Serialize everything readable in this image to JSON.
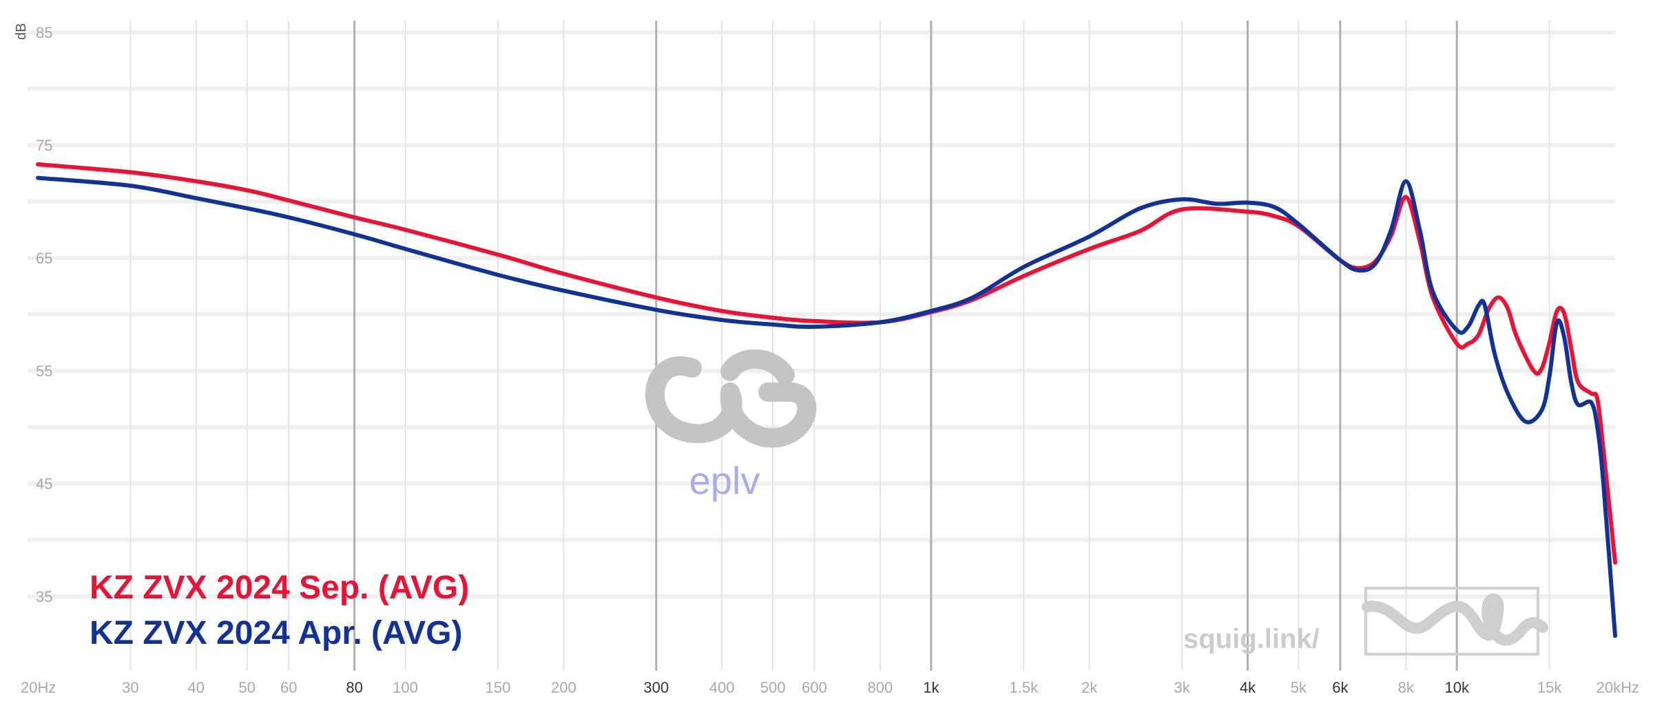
{
  "chart_data": {
    "type": "line",
    "ylabel": "dB",
    "xscale": "log",
    "xlim": [
      20,
      20000
    ],
    "ylim": [
      30,
      86
    ],
    "grid": true,
    "y_ticks": [
      {
        "value": 85,
        "label": "85"
      },
      {
        "value": 75,
        "label": "75"
      },
      {
        "value": 65,
        "label": "65"
      },
      {
        "value": 55,
        "label": "55"
      },
      {
        "value": 45,
        "label": "45"
      },
      {
        "value": 35,
        "label": "35"
      }
    ],
    "y_minor": [
      35,
      40,
      45,
      50,
      55,
      60,
      65,
      70,
      75,
      80,
      85
    ],
    "x_ticks": [
      {
        "value": 20,
        "label": "20Hz",
        "major": false
      },
      {
        "value": 30,
        "label": "30",
        "major": false
      },
      {
        "value": 40,
        "label": "40",
        "major": false
      },
      {
        "value": 50,
        "label": "50",
        "major": false
      },
      {
        "value": 60,
        "label": "60",
        "major": false
      },
      {
        "value": 80,
        "label": "80",
        "major": true
      },
      {
        "value": 100,
        "label": "100",
        "major": false
      },
      {
        "value": 150,
        "label": "150",
        "major": false
      },
      {
        "value": 200,
        "label": "200",
        "major": false
      },
      {
        "value": 300,
        "label": "300",
        "major": true
      },
      {
        "value": 400,
        "label": "400",
        "major": false
      },
      {
        "value": 500,
        "label": "500",
        "major": false
      },
      {
        "value": 600,
        "label": "600",
        "major": false
      },
      {
        "value": 800,
        "label": "800",
        "major": false
      },
      {
        "value": 1000,
        "label": "1k",
        "major": true
      },
      {
        "value": 1500,
        "label": "1.5k",
        "major": false
      },
      {
        "value": 2000,
        "label": "2k",
        "major": false
      },
      {
        "value": 3000,
        "label": "3k",
        "major": false
      },
      {
        "value": 4000,
        "label": "4k",
        "major": true
      },
      {
        "value": 5000,
        "label": "5k",
        "major": false
      },
      {
        "value": 6000,
        "label": "6k",
        "major": true
      },
      {
        "value": 8000,
        "label": "8k",
        "major": false
      },
      {
        "value": 10000,
        "label": "10k",
        "major": true
      },
      {
        "value": 15000,
        "label": "15k",
        "major": false
      },
      {
        "value": 20000,
        "label": "20kHz",
        "major": false
      }
    ],
    "legend_position": "bottom-left",
    "series": [
      {
        "name": "KZ ZVX 2024 Sep. (AVG)",
        "color": "#ee1133",
        "points": [
          [
            20,
            73.3
          ],
          [
            30,
            72.6
          ],
          [
            40,
            71.8
          ],
          [
            50,
            71.0
          ],
          [
            60,
            70.1
          ],
          [
            80,
            68.6
          ],
          [
            100,
            67.5
          ],
          [
            150,
            65.3
          ],
          [
            200,
            63.6
          ],
          [
            300,
            61.5
          ],
          [
            400,
            60.3
          ],
          [
            500,
            59.7
          ],
          [
            600,
            59.4
          ],
          [
            800,
            59.3
          ],
          [
            1000,
            60.2
          ],
          [
            1200,
            61.3
          ],
          [
            1500,
            63.4
          ],
          [
            2000,
            65.8
          ],
          [
            2500,
            67.4
          ],
          [
            3000,
            69.3
          ],
          [
            4000,
            69.1
          ],
          [
            4500,
            68.7
          ],
          [
            5000,
            67.8
          ],
          [
            6000,
            64.8
          ],
          [
            6500,
            64.1
          ],
          [
            7000,
            64.7
          ],
          [
            7500,
            67.0
          ],
          [
            8000,
            70.4
          ],
          [
            8500,
            66.5
          ],
          [
            9000,
            61.5
          ],
          [
            10000,
            57.4
          ],
          [
            10500,
            57.4
          ],
          [
            11000,
            58.2
          ],
          [
            11500,
            60.5
          ],
          [
            12000,
            61.5
          ],
          [
            12500,
            60.5
          ],
          [
            13000,
            58.0
          ],
          [
            14000,
            55.0
          ],
          [
            14500,
            55.2
          ],
          [
            15000,
            57.5
          ],
          [
            15500,
            60.3
          ],
          [
            16000,
            60.1
          ],
          [
            16500,
            57.0
          ],
          [
            17000,
            54.0
          ],
          [
            18000,
            53.0
          ],
          [
            18500,
            52.5
          ],
          [
            19000,
            48.0
          ],
          [
            20000,
            38.0
          ]
        ]
      },
      {
        "name": "KZ ZVX 2024 Apr. (AVG)",
        "color": "#113399",
        "points": [
          [
            20,
            72.1
          ],
          [
            30,
            71.4
          ],
          [
            40,
            70.3
          ],
          [
            50,
            69.4
          ],
          [
            60,
            68.6
          ],
          [
            80,
            67.1
          ],
          [
            100,
            65.8
          ],
          [
            150,
            63.5
          ],
          [
            200,
            62.1
          ],
          [
            300,
            60.4
          ],
          [
            400,
            59.5
          ],
          [
            500,
            59.1
          ],
          [
            600,
            58.9
          ],
          [
            800,
            59.3
          ],
          [
            1000,
            60.3
          ],
          [
            1200,
            61.5
          ],
          [
            1500,
            64.2
          ],
          [
            2000,
            66.9
          ],
          [
            2500,
            69.4
          ],
          [
            3000,
            70.2
          ],
          [
            3500,
            69.8
          ],
          [
            4000,
            69.9
          ],
          [
            4500,
            69.5
          ],
          [
            5000,
            68.0
          ],
          [
            6000,
            64.8
          ],
          [
            6500,
            63.9
          ],
          [
            7000,
            64.5
          ],
          [
            7500,
            67.5
          ],
          [
            8000,
            71.8
          ],
          [
            8500,
            67.5
          ],
          [
            9000,
            62.0
          ],
          [
            10000,
            58.6
          ],
          [
            10500,
            58.9
          ],
          [
            11000,
            60.8
          ],
          [
            11300,
            60.8
          ],
          [
            11800,
            56.5
          ],
          [
            12500,
            53.0
          ],
          [
            13500,
            50.5
          ],
          [
            14500,
            51.5
          ],
          [
            15000,
            54.5
          ],
          [
            15500,
            59.3
          ],
          [
            16000,
            58.0
          ],
          [
            16500,
            54.0
          ],
          [
            17000,
            52.0
          ],
          [
            18000,
            52.2
          ],
          [
            18500,
            50.0
          ],
          [
            19000,
            45.0
          ],
          [
            20000,
            31.5
          ]
        ]
      }
    ]
  },
  "watermark": {
    "text": "eplv"
  },
  "branding": {
    "text": "squig.link/"
  },
  "colors": {
    "grid_minor": "#f0f0f0",
    "grid_vertical": "#e4e4e4",
    "grid_major": "#b0b0b0",
    "logo_gray": "#c4c4c4",
    "logo_text": "#aaaaee"
  }
}
